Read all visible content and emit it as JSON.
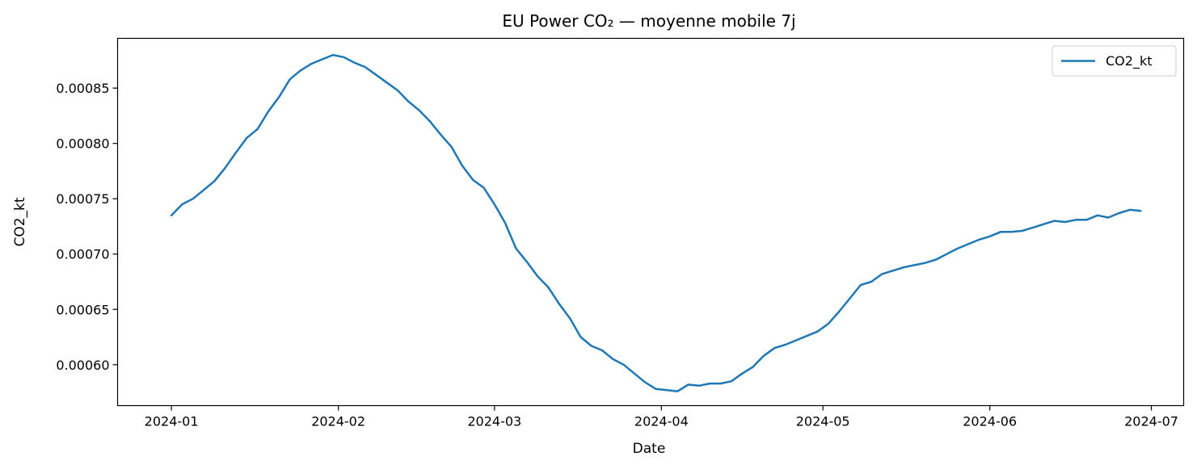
{
  "chart_data": {
    "type": "line",
    "title": "EU Power CO₂ — moyenne mobile 7j",
    "xlabel": "Date",
    "ylabel": "CO2_kt",
    "x_ticks": [
      "2024-01",
      "2024-02",
      "2024-03",
      "2024-04",
      "2024-05",
      "2024-06",
      "2024-07"
    ],
    "y_ticks": [
      "0.00060",
      "0.00065",
      "0.00070",
      "0.00075",
      "0.00080",
      "0.00085"
    ],
    "xlim": [
      "2023-12-22",
      "2024-07-07"
    ],
    "ylim": [
      0.000563,
      0.000895
    ],
    "legend_position": "top-right",
    "grid": false,
    "series": [
      {
        "name": "CO2_kt",
        "color": "#1f77b4",
        "points": [
          [
            "2024-01-01",
            0.000735
          ],
          [
            "2024-01-03",
            0.000745
          ],
          [
            "2024-01-05",
            0.00075
          ],
          [
            "2024-01-07",
            0.000758
          ],
          [
            "2024-01-09",
            0.000766
          ],
          [
            "2024-01-11",
            0.000778
          ],
          [
            "2024-01-13",
            0.000792
          ],
          [
            "2024-01-15",
            0.000805
          ],
          [
            "2024-01-17",
            0.000813
          ],
          [
            "2024-01-19",
            0.000829
          ],
          [
            "2024-01-21",
            0.000842
          ],
          [
            "2024-01-23",
            0.000858
          ],
          [
            "2024-01-25",
            0.000866
          ],
          [
            "2024-01-27",
            0.000872
          ],
          [
            "2024-01-29",
            0.000876
          ],
          [
            "2024-01-31",
            0.00088
          ],
          [
            "2024-02-02",
            0.000878
          ],
          [
            "2024-02-04",
            0.000873
          ],
          [
            "2024-02-06",
            0.000869
          ],
          [
            "2024-02-08",
            0.000862
          ],
          [
            "2024-02-10",
            0.000855
          ],
          [
            "2024-02-12",
            0.000848
          ],
          [
            "2024-02-14",
            0.000838
          ],
          [
            "2024-02-16",
            0.00083
          ],
          [
            "2024-02-18",
            0.00082
          ],
          [
            "2024-02-20",
            0.000808
          ],
          [
            "2024-02-22",
            0.000797
          ],
          [
            "2024-02-24",
            0.00078
          ],
          [
            "2024-02-26",
            0.000767
          ],
          [
            "2024-02-28",
            0.00076
          ],
          [
            "2024-03-01",
            0.000745
          ],
          [
            "2024-03-03",
            0.000728
          ],
          [
            "2024-03-05",
            0.000705
          ],
          [
            "2024-03-07",
            0.000693
          ],
          [
            "2024-03-09",
            0.00068
          ],
          [
            "2024-03-11",
            0.00067
          ],
          [
            "2024-03-13",
            0.000655
          ],
          [
            "2024-03-15",
            0.000642
          ],
          [
            "2024-03-17",
            0.000625
          ],
          [
            "2024-03-19",
            0.000617
          ],
          [
            "2024-03-21",
            0.000613
          ],
          [
            "2024-03-23",
            0.000605
          ],
          [
            "2024-03-25",
            0.0006
          ],
          [
            "2024-03-27",
            0.000592
          ],
          [
            "2024-03-29",
            0.000584
          ],
          [
            "2024-03-31",
            0.000578
          ],
          [
            "2024-04-02",
            0.000577
          ],
          [
            "2024-04-04",
            0.000576
          ],
          [
            "2024-04-06",
            0.000582
          ],
          [
            "2024-04-08",
            0.000581
          ],
          [
            "2024-04-10",
            0.000583
          ],
          [
            "2024-04-12",
            0.000583
          ],
          [
            "2024-04-14",
            0.000585
          ],
          [
            "2024-04-16",
            0.000592
          ],
          [
            "2024-04-18",
            0.000598
          ],
          [
            "2024-04-20",
            0.000608
          ],
          [
            "2024-04-22",
            0.000615
          ],
          [
            "2024-04-24",
            0.000618
          ],
          [
            "2024-04-26",
            0.000622
          ],
          [
            "2024-04-28",
            0.000626
          ],
          [
            "2024-04-30",
            0.00063
          ],
          [
            "2024-05-02",
            0.000637
          ],
          [
            "2024-05-04",
            0.000648
          ],
          [
            "2024-05-06",
            0.00066
          ],
          [
            "2024-05-08",
            0.000672
          ],
          [
            "2024-05-10",
            0.000675
          ],
          [
            "2024-05-12",
            0.000682
          ],
          [
            "2024-05-14",
            0.000685
          ],
          [
            "2024-05-16",
            0.000688
          ],
          [
            "2024-05-18",
            0.00069
          ],
          [
            "2024-05-20",
            0.000692
          ],
          [
            "2024-05-22",
            0.000695
          ],
          [
            "2024-05-24",
            0.0007
          ],
          [
            "2024-05-26",
            0.000705
          ],
          [
            "2024-05-28",
            0.000709
          ],
          [
            "2024-05-30",
            0.000713
          ],
          [
            "2024-06-01",
            0.000716
          ],
          [
            "2024-06-03",
            0.00072
          ],
          [
            "2024-06-05",
            0.00072
          ],
          [
            "2024-06-07",
            0.000721
          ],
          [
            "2024-06-09",
            0.000724
          ],
          [
            "2024-06-11",
            0.000727
          ],
          [
            "2024-06-13",
            0.00073
          ],
          [
            "2024-06-15",
            0.000729
          ],
          [
            "2024-06-17",
            0.000731
          ],
          [
            "2024-06-19",
            0.000731
          ],
          [
            "2024-06-21",
            0.000735
          ],
          [
            "2024-06-23",
            0.000733
          ],
          [
            "2024-06-25",
            0.000737
          ],
          [
            "2024-06-27",
            0.00074
          ],
          [
            "2024-06-29",
            0.000739
          ]
        ]
      }
    ]
  }
}
